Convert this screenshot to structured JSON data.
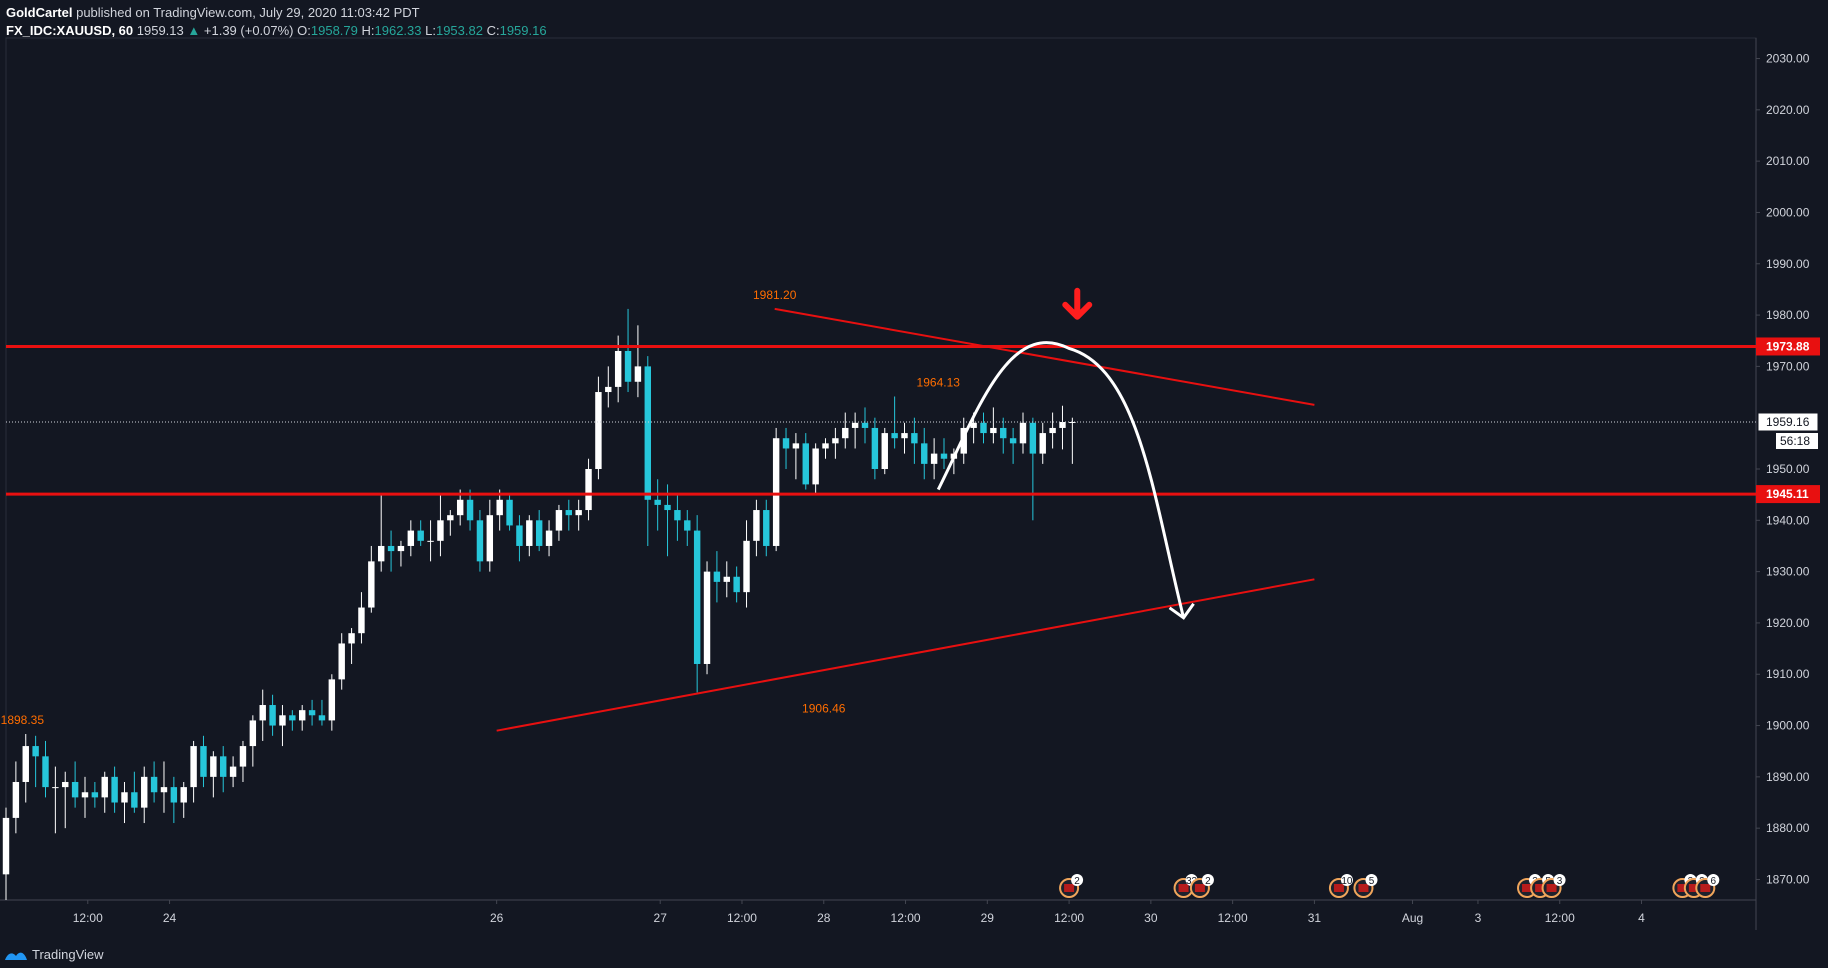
{
  "header": {
    "author": "GoldCartel",
    "published_text": "published on TradingView.com, July 29, 2020 11:03:42 PDT",
    "symbol": "FX_IDC:XAUUSD, 60",
    "last": "1959.13",
    "change": "+1.39 (+0.07%)",
    "o_label": "O:",
    "o_value": "1958.79",
    "h_label": "H:",
    "h_value": "1962.33",
    "l_label": "L:",
    "l_value": "1953.82",
    "c_label": "C:",
    "c_value": "1959.16"
  },
  "footer": {
    "brand": "TradingView"
  },
  "colors": {
    "background": "#131722",
    "up_candle": "#ffffff",
    "down_candle": "#26c6da",
    "level_line": "#e81010",
    "trend_line": "#e81010",
    "annotation_arrow": "#ffffff",
    "price_tag_text": "#ff6d00"
  },
  "chart_data": {
    "type": "candlestick",
    "ylim": [
      1866,
      2034
    ],
    "y_ticks": [
      "2030.00",
      "2020.00",
      "2010.00",
      "2000.00",
      "1990.00",
      "1980.00",
      "1970.00",
      "1950.00",
      "1940.00",
      "1930.00",
      "1920.00",
      "1910.00",
      "1900.00",
      "1890.00",
      "1880.00",
      "1870.00"
    ],
    "x_ticks": [
      {
        "label": "12:00",
        "day": 23.5
      },
      {
        "label": "24",
        "day": 24
      },
      {
        "label": "26",
        "day": 26
      },
      {
        "label": "27",
        "day": 27
      },
      {
        "label": "12:00",
        "day": 27.5
      },
      {
        "label": "28",
        "day": 28
      },
      {
        "label": "12:00",
        "day": 28.5
      },
      {
        "label": "29",
        "day": 29
      },
      {
        "label": "12:00",
        "day": 29.5
      },
      {
        "label": "30",
        "day": 30
      },
      {
        "label": "12:00",
        "day": 30.5
      },
      {
        "label": "31",
        "day": 31
      },
      {
        "label": "Aug",
        "day": 31.6
      },
      {
        "label": "3",
        "day": 32
      },
      {
        "label": "12:00",
        "day": 32.5
      },
      {
        "label": "4",
        "day": 33
      }
    ],
    "horizontal_levels": [
      {
        "value": 1973.88,
        "label": "1973.88"
      },
      {
        "value": 1945.11,
        "label": "1945.11"
      }
    ],
    "current_price": {
      "value": 1959.16,
      "label": "1959.16",
      "countdown": "56:18"
    },
    "price_annotations": [
      {
        "label": "1981.20",
        "value": 1981.2,
        "day": 27.7
      },
      {
        "label": "1964.13",
        "value": 1964.13,
        "day": 28.7
      },
      {
        "label": "1906.46",
        "value": 1906.46,
        "day": 28.0
      },
      {
        "label": "1898.35",
        "value": 1898.35,
        "day": 23.1
      }
    ],
    "trend_lines": [
      {
        "name": "upper",
        "from": {
          "day": 27.7,
          "value": 1981.2
        },
        "to": {
          "day": 31.0,
          "value": 1962.5
        }
      },
      {
        "name": "lower",
        "from": {
          "day": 26.0,
          "value": 1899.0
        },
        "to": {
          "day": 31.0,
          "value": 1928.5
        }
      }
    ],
    "event_markers": [
      {
        "day": 29.5,
        "count": "2"
      },
      {
        "day": 30.2,
        "count": "33"
      },
      {
        "day": 30.3,
        "count": "2"
      },
      {
        "day": 31.15,
        "count": "10"
      },
      {
        "day": 31.3,
        "count": "5"
      },
      {
        "day": 32.3,
        "count": "3"
      },
      {
        "day": 32.38,
        "count": "5"
      },
      {
        "day": 32.45,
        "count": "3"
      },
      {
        "day": 33.25,
        "count": "2"
      },
      {
        "day": 33.32,
        "count": "2"
      },
      {
        "day": 33.39,
        "count": "6"
      }
    ],
    "candles": [
      {
        "o": 1871,
        "h": 1884,
        "l": 1866,
        "c": 1882
      },
      {
        "o": 1882,
        "h": 1893,
        "l": 1879,
        "c": 1889
      },
      {
        "o": 1889,
        "h": 1898.35,
        "l": 1885,
        "c": 1896
      },
      {
        "o": 1896,
        "h": 1898,
        "l": 1888,
        "c": 1894
      },
      {
        "o": 1894,
        "h": 1897,
        "l": 1886,
        "c": 1888
      },
      {
        "o": 1888,
        "h": 1892,
        "l": 1879,
        "c": 1888
      },
      {
        "o": 1888,
        "h": 1891,
        "l": 1880,
        "c": 1889
      },
      {
        "o": 1889,
        "h": 1893,
        "l": 1884,
        "c": 1886
      },
      {
        "o": 1886,
        "h": 1890,
        "l": 1882,
        "c": 1887
      },
      {
        "o": 1887,
        "h": 1889,
        "l": 1884,
        "c": 1886
      },
      {
        "o": 1886,
        "h": 1891,
        "l": 1883,
        "c": 1890
      },
      {
        "o": 1890,
        "h": 1892,
        "l": 1883,
        "c": 1885
      },
      {
        "o": 1885,
        "h": 1889,
        "l": 1881,
        "c": 1887
      },
      {
        "o": 1887,
        "h": 1891,
        "l": 1883,
        "c": 1884
      },
      {
        "o": 1884,
        "h": 1892,
        "l": 1881,
        "c": 1890
      },
      {
        "o": 1890,
        "h": 1893,
        "l": 1885,
        "c": 1887
      },
      {
        "o": 1887,
        "h": 1893,
        "l": 1883,
        "c": 1888
      },
      {
        "o": 1888,
        "h": 1890,
        "l": 1881,
        "c": 1885
      },
      {
        "o": 1885,
        "h": 1889,
        "l": 1882,
        "c": 1888
      },
      {
        "o": 1888,
        "h": 1897,
        "l": 1885,
        "c": 1896
      },
      {
        "o": 1896,
        "h": 1898,
        "l": 1888,
        "c": 1890
      },
      {
        "o": 1890,
        "h": 1895,
        "l": 1886,
        "c": 1894
      },
      {
        "o": 1894,
        "h": 1896,
        "l": 1887,
        "c": 1890
      },
      {
        "o": 1890,
        "h": 1894,
        "l": 1888,
        "c": 1892
      },
      {
        "o": 1892,
        "h": 1897,
        "l": 1889,
        "c": 1896
      },
      {
        "o": 1896,
        "h": 1902,
        "l": 1892,
        "c": 1901
      },
      {
        "o": 1901,
        "h": 1907,
        "l": 1897,
        "c": 1904
      },
      {
        "o": 1904,
        "h": 1906,
        "l": 1898,
        "c": 1900
      },
      {
        "o": 1900,
        "h": 1904,
        "l": 1896,
        "c": 1902
      },
      {
        "o": 1902,
        "h": 1903,
        "l": 1899,
        "c": 1901
      },
      {
        "o": 1901,
        "h": 1904,
        "l": 1899,
        "c": 1903
      },
      {
        "o": 1903,
        "h": 1905,
        "l": 1900,
        "c": 1902
      },
      {
        "o": 1902,
        "h": 1905,
        "l": 1900,
        "c": 1901
      },
      {
        "o": 1901,
        "h": 1910,
        "l": 1899,
        "c": 1909
      },
      {
        "o": 1909,
        "h": 1918,
        "l": 1907,
        "c": 1916
      },
      {
        "o": 1916,
        "h": 1919,
        "l": 1912,
        "c": 1918
      },
      {
        "o": 1918,
        "h": 1926,
        "l": 1916,
        "c": 1923
      },
      {
        "o": 1923,
        "h": 1935,
        "l": 1922,
        "c": 1932
      },
      {
        "o": 1932,
        "h": 1945,
        "l": 1930,
        "c": 1935
      },
      {
        "o": 1935,
        "h": 1938,
        "l": 1930,
        "c": 1934
      },
      {
        "o": 1934,
        "h": 1936,
        "l": 1931,
        "c": 1935
      },
      {
        "o": 1935,
        "h": 1940,
        "l": 1933,
        "c": 1938
      },
      {
        "o": 1938,
        "h": 1940,
        "l": 1935,
        "c": 1936
      },
      {
        "o": 1936,
        "h": 1940,
        "l": 1932,
        "c": 1936
      },
      {
        "o": 1936,
        "h": 1945,
        "l": 1933,
        "c": 1940
      },
      {
        "o": 1940,
        "h": 1942,
        "l": 1937,
        "c": 1941
      },
      {
        "o": 1941,
        "h": 1946,
        "l": 1939,
        "c": 1944
      },
      {
        "o": 1944,
        "h": 1946,
        "l": 1938,
        "c": 1940
      },
      {
        "o": 1940,
        "h": 1942,
        "l": 1930,
        "c": 1932
      },
      {
        "o": 1932,
        "h": 1944,
        "l": 1930,
        "c": 1941
      },
      {
        "o": 1941,
        "h": 1946,
        "l": 1938,
        "c": 1944
      },
      {
        "o": 1944,
        "h": 1945,
        "l": 1938,
        "c": 1939
      },
      {
        "o": 1939,
        "h": 1941,
        "l": 1932,
        "c": 1935
      },
      {
        "o": 1935,
        "h": 1941,
        "l": 1933,
        "c": 1940
      },
      {
        "o": 1940,
        "h": 1942,
        "l": 1934,
        "c": 1935
      },
      {
        "o": 1935,
        "h": 1940,
        "l": 1933,
        "c": 1938
      },
      {
        "o": 1938,
        "h": 1943,
        "l": 1936,
        "c": 1942
      },
      {
        "o": 1942,
        "h": 1944,
        "l": 1938,
        "c": 1941
      },
      {
        "o": 1941,
        "h": 1944,
        "l": 1938,
        "c": 1942
      },
      {
        "o": 1942,
        "h": 1952,
        "l": 1940,
        "c": 1950
      },
      {
        "o": 1950,
        "h": 1968,
        "l": 1948,
        "c": 1965
      },
      {
        "o": 1965,
        "h": 1970,
        "l": 1962,
        "c": 1966
      },
      {
        "o": 1966,
        "h": 1976,
        "l": 1963,
        "c": 1973
      },
      {
        "o": 1973,
        "h": 1981.2,
        "l": 1965,
        "c": 1967
      },
      {
        "o": 1967,
        "h": 1978,
        "l": 1964,
        "c": 1970
      },
      {
        "o": 1970,
        "h": 1972,
        "l": 1935,
        "c": 1944
      },
      {
        "o": 1944,
        "h": 1948,
        "l": 1938,
        "c": 1943
      },
      {
        "o": 1943,
        "h": 1947,
        "l": 1933,
        "c": 1942
      },
      {
        "o": 1942,
        "h": 1945,
        "l": 1936,
        "c": 1940
      },
      {
        "o": 1940,
        "h": 1942,
        "l": 1935,
        "c": 1938
      },
      {
        "o": 1938,
        "h": 1941,
        "l": 1906.46,
        "c": 1912
      },
      {
        "o": 1912,
        "h": 1932,
        "l": 1910,
        "c": 1930
      },
      {
        "o": 1930,
        "h": 1934,
        "l": 1924,
        "c": 1928
      },
      {
        "o": 1928,
        "h": 1932,
        "l": 1925,
        "c": 1929
      },
      {
        "o": 1929,
        "h": 1931,
        "l": 1924,
        "c": 1926
      },
      {
        "o": 1926,
        "h": 1940,
        "l": 1923,
        "c": 1936
      },
      {
        "o": 1936,
        "h": 1944,
        "l": 1933,
        "c": 1942
      },
      {
        "o": 1942,
        "h": 1944,
        "l": 1933,
        "c": 1935
      },
      {
        "o": 1935,
        "h": 1958,
        "l": 1934,
        "c": 1956
      },
      {
        "o": 1956,
        "h": 1958,
        "l": 1950,
        "c": 1954
      },
      {
        "o": 1954,
        "h": 1957,
        "l": 1948,
        "c": 1955
      },
      {
        "o": 1955,
        "h": 1957,
        "l": 1946,
        "c": 1947
      },
      {
        "o": 1947,
        "h": 1955,
        "l": 1945,
        "c": 1954
      },
      {
        "o": 1954,
        "h": 1956,
        "l": 1952,
        "c": 1955
      },
      {
        "o": 1955,
        "h": 1958,
        "l": 1952,
        "c": 1956
      },
      {
        "o": 1956,
        "h": 1961,
        "l": 1954,
        "c": 1958
      },
      {
        "o": 1958,
        "h": 1961,
        "l": 1954,
        "c": 1959
      },
      {
        "o": 1959,
        "h": 1962,
        "l": 1955,
        "c": 1958
      },
      {
        "o": 1958,
        "h": 1960,
        "l": 1948,
        "c": 1950
      },
      {
        "o": 1950,
        "h": 1958,
        "l": 1949,
        "c": 1957
      },
      {
        "o": 1957,
        "h": 1964.13,
        "l": 1954,
        "c": 1956
      },
      {
        "o": 1956,
        "h": 1959,
        "l": 1953,
        "c": 1957
      },
      {
        "o": 1957,
        "h": 1960,
        "l": 1951,
        "c": 1955
      },
      {
        "o": 1955,
        "h": 1958,
        "l": 1948,
        "c": 1951
      },
      {
        "o": 1951,
        "h": 1956,
        "l": 1948,
        "c": 1953
      },
      {
        "o": 1953,
        "h": 1956,
        "l": 1950,
        "c": 1952
      },
      {
        "o": 1952,
        "h": 1954,
        "l": 1949,
        "c": 1953
      },
      {
        "o": 1953,
        "h": 1960,
        "l": 1951,
        "c": 1958
      },
      {
        "o": 1958,
        "h": 1961,
        "l": 1955,
        "c": 1959
      },
      {
        "o": 1959,
        "h": 1961,
        "l": 1955,
        "c": 1957
      },
      {
        "o": 1957,
        "h": 1962,
        "l": 1955,
        "c": 1958
      },
      {
        "o": 1958,
        "h": 1960,
        "l": 1953,
        "c": 1956
      },
      {
        "o": 1956,
        "h": 1958,
        "l": 1951,
        "c": 1955
      },
      {
        "o": 1955,
        "h": 1961,
        "l": 1953,
        "c": 1959
      },
      {
        "o": 1959,
        "h": 1960,
        "l": 1940,
        "c": 1953
      },
      {
        "o": 1953,
        "h": 1959,
        "l": 1951,
        "c": 1957
      },
      {
        "o": 1957,
        "h": 1961,
        "l": 1954,
        "c": 1958
      },
      {
        "o": 1958,
        "h": 1962.33,
        "l": 1953.82,
        "c": 1959.16
      },
      {
        "o": 1959.16,
        "h": 1960,
        "l": 1951,
        "c": 1959.16
      }
    ]
  }
}
